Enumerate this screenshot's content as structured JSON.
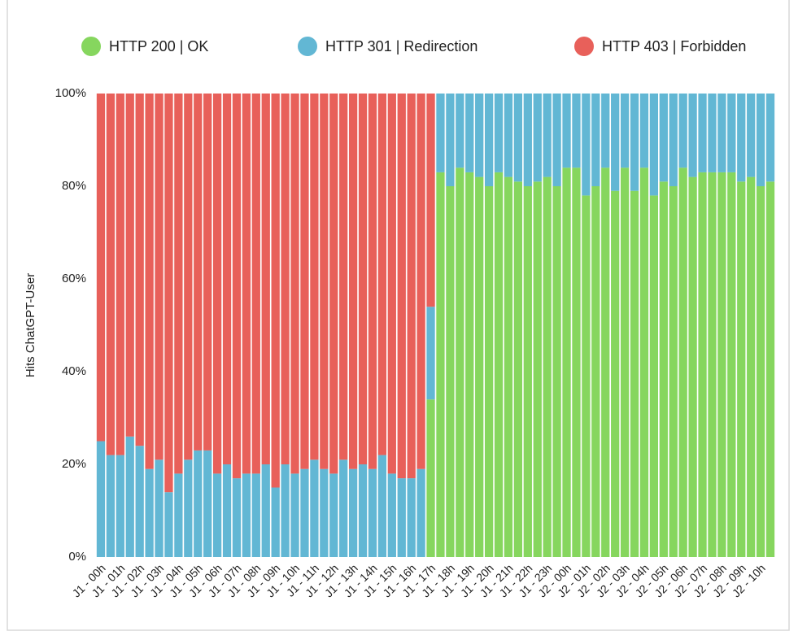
{
  "chart_data": {
    "type": "stacked-bar-100",
    "y_label": "Hits ChatGPT-User",
    "categories": [
      "J1 - 00h",
      null,
      "J1 - 01h",
      null,
      "J1 - 02h",
      null,
      "J1 - 03h",
      null,
      "J1 - 04h",
      null,
      "J1 - 05h",
      null,
      "J1 - 06h",
      null,
      "J1 - 07h",
      null,
      "J1 - 08h",
      null,
      "J1 - 09h",
      null,
      "J1 - 10h",
      null,
      "J1 - 11h",
      null,
      "J1 - 12h",
      null,
      "J1 - 13h",
      null,
      "J1 - 14h",
      null,
      "J1 - 15h",
      null,
      "J1 - 16h",
      null,
      "J1 - 17h",
      null,
      "J1 - 18h",
      null,
      "J1 - 19h",
      null,
      "J1 - 20h",
      null,
      "J1 - 21h",
      null,
      "J1 - 22h",
      null,
      "J1 - 23h",
      null,
      "J2 - 00h",
      null,
      "J2 - 01h",
      null,
      "J2 - 02h",
      null,
      "J2 - 03h",
      null,
      "J2 - 04h",
      null,
      "J2 - 05h",
      null,
      "J2 - 06h",
      null,
      "J2 - 07h",
      null,
      "J2 - 08h",
      null,
      "J2 - 09h",
      null,
      "J2 - 10h",
      null
    ],
    "series": [
      {
        "name": "HTTP 200 | OK",
        "color": "#86d65e",
        "values": [
          0,
          0,
          0,
          0,
          0,
          0,
          0,
          0,
          0,
          0,
          0,
          0,
          0,
          0,
          0,
          0,
          0,
          0,
          0,
          0,
          0,
          0,
          0,
          0,
          0,
          0,
          0,
          0,
          0,
          0,
          0,
          0,
          0,
          0,
          34,
          83,
          80,
          84,
          83,
          82,
          80,
          83,
          82,
          81,
          80,
          81,
          82,
          80,
          84,
          84,
          78,
          80,
          84,
          79,
          84,
          79,
          84,
          78,
          81,
          80,
          84,
          82,
          83,
          83,
          83,
          83,
          81,
          82,
          80,
          81
        ]
      },
      {
        "name": "HTTP 301 | Redirection",
        "color": "#62b7d4",
        "values": [
          25,
          22,
          22,
          26,
          24,
          19,
          21,
          14,
          18,
          21,
          23,
          23,
          18,
          20,
          17,
          18,
          18,
          20,
          15,
          20,
          18,
          19,
          21,
          19,
          18,
          21,
          19,
          20,
          19,
          22,
          18,
          17,
          17,
          19,
          20,
          17,
          20,
          16,
          17,
          18,
          20,
          17,
          18,
          19,
          20,
          19,
          18,
          20,
          16,
          16,
          22,
          20,
          16,
          21,
          16,
          21,
          16,
          22,
          19,
          20,
          16,
          18,
          17,
          17,
          17,
          17,
          19,
          18,
          20,
          19
        ]
      },
      {
        "name": "HTTP 403 | Forbidden",
        "color": "#e8605a",
        "values": [
          75,
          78,
          78,
          74,
          76,
          81,
          79,
          86,
          82,
          79,
          77,
          77,
          82,
          80,
          83,
          82,
          82,
          80,
          85,
          80,
          82,
          81,
          79,
          81,
          82,
          79,
          81,
          80,
          81,
          78,
          82,
          83,
          83,
          81,
          46,
          0,
          0,
          0,
          0,
          0,
          0,
          0,
          0,
          0,
          0,
          0,
          0,
          0,
          0,
          0,
          0,
          0,
          0,
          0,
          0,
          0,
          0,
          0,
          0,
          0,
          0,
          0,
          0,
          0,
          0,
          0,
          0,
          0,
          0,
          0
        ]
      }
    ],
    "ylim": [
      0,
      100
    ],
    "yticks": [
      {
        "value": 0,
        "label": "0%"
      },
      {
        "value": 20,
        "label": "20%"
      },
      {
        "value": 40,
        "label": "40%"
      },
      {
        "value": 60,
        "label": "60%"
      },
      {
        "value": 80,
        "label": "80%"
      },
      {
        "value": 100,
        "label": "100%"
      }
    ],
    "grid": false,
    "legend": "top"
  }
}
